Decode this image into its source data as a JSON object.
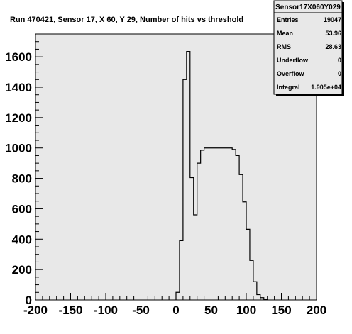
{
  "chart_data": {
    "type": "histogram",
    "title": "Run 470421, Sensor 17, X 60, Y 29, Number of hits vs threshold",
    "xlim": [
      -200,
      200
    ],
    "ylim": [
      0,
      1750
    ],
    "bin_width": 5,
    "x_ticks": [
      -200,
      -150,
      -100,
      -50,
      0,
      50,
      100,
      150,
      200
    ],
    "x_tick_labels": [
      "-200",
      "-150",
      "-100",
      "-50",
      "0",
      "50",
      "100",
      "150",
      "200"
    ],
    "y_ticks": [
      0,
      200,
      400,
      600,
      800,
      1000,
      1200,
      1400,
      1600
    ],
    "y_tick_labels": [
      "0",
      "200",
      "400",
      "600",
      "800",
      "1000",
      "1200",
      "1400",
      "1600"
    ],
    "bins": [
      {
        "x": 0,
        "y": 50
      },
      {
        "x": 5,
        "y": 390
      },
      {
        "x": 10,
        "y": 1450
      },
      {
        "x": 15,
        "y": 1635
      },
      {
        "x": 20,
        "y": 805
      },
      {
        "x": 25,
        "y": 560
      },
      {
        "x": 30,
        "y": 900
      },
      {
        "x": 35,
        "y": 985
      },
      {
        "x": 40,
        "y": 1000
      },
      {
        "x": 45,
        "y": 1000
      },
      {
        "x": 50,
        "y": 1000
      },
      {
        "x": 55,
        "y": 1000
      },
      {
        "x": 60,
        "y": 1000
      },
      {
        "x": 65,
        "y": 1000
      },
      {
        "x": 70,
        "y": 1000
      },
      {
        "x": 75,
        "y": 1000
      },
      {
        "x": 80,
        "y": 990
      },
      {
        "x": 85,
        "y": 950
      },
      {
        "x": 90,
        "y": 825
      },
      {
        "x": 95,
        "y": 645
      },
      {
        "x": 100,
        "y": 465
      },
      {
        "x": 105,
        "y": 260
      },
      {
        "x": 110,
        "y": 120
      },
      {
        "x": 115,
        "y": 35
      },
      {
        "x": 120,
        "y": 15
      },
      {
        "x": 125,
        "y": 5
      }
    ],
    "grid": false,
    "line_color": "#000000",
    "plot_background": "#e8e8e8",
    "stats_box": {
      "title": "Sensor17X060Y029",
      "placement": "top-right",
      "rows": [
        {
          "label": "Entries",
          "value": "19047"
        },
        {
          "label": "Mean",
          "value": "53.96"
        },
        {
          "label": "RMS",
          "value": "28.63"
        },
        {
          "label": "Underflow",
          "value": "0"
        },
        {
          "label": "Overflow",
          "value": "0"
        },
        {
          "label": "Integral",
          "value": "1.905e+04"
        }
      ],
      "background": "#e8e8e8"
    }
  }
}
